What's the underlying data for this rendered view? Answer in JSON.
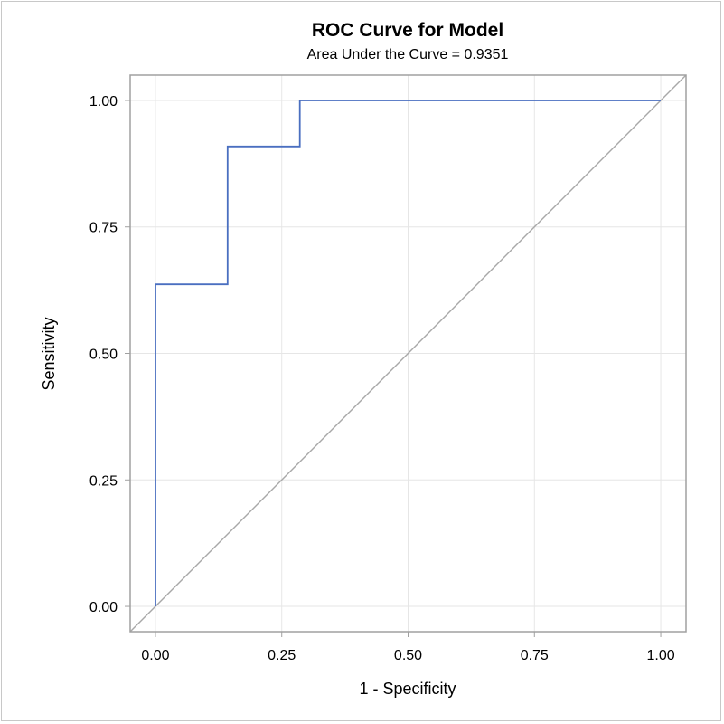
{
  "chart_data": {
    "type": "line",
    "title": "ROC Curve for Model",
    "subtitle": "Area Under the Curve = 0.9351",
    "xlabel": "1 - Specificity",
    "ylabel": "Sensitivity",
    "xlim": [
      -0.05,
      1.05
    ],
    "ylim": [
      -0.05,
      1.05
    ],
    "xticks": [
      0,
      0.25,
      0.5,
      0.75,
      1
    ],
    "yticks": [
      0,
      0.25,
      0.5,
      0.75,
      1
    ],
    "xtick_labels": [
      "0.00",
      "0.25",
      "0.50",
      "0.75",
      "1.00"
    ],
    "ytick_labels": [
      "0.00",
      "0.25",
      "0.50",
      "0.75",
      "1.00"
    ],
    "grid": true,
    "series": [
      {
        "x": [
          0,
          0,
          0.1429,
          0.1429,
          0.2857,
          0.2857,
          1.0
        ],
        "y": [
          0,
          0.6364,
          0.6364,
          0.9091,
          0.9091,
          1.0,
          1.0
        ],
        "color": "#4a6fc0"
      }
    ],
    "reference_line": {
      "x": [
        -0.05,
        1.05
      ],
      "y": [
        -0.05,
        1.05
      ],
      "color": "#a8a8a8"
    },
    "colors": {
      "grid": "#e6e6e6",
      "axis": "#a0a0a0",
      "frame": "#c8c8c8"
    }
  }
}
